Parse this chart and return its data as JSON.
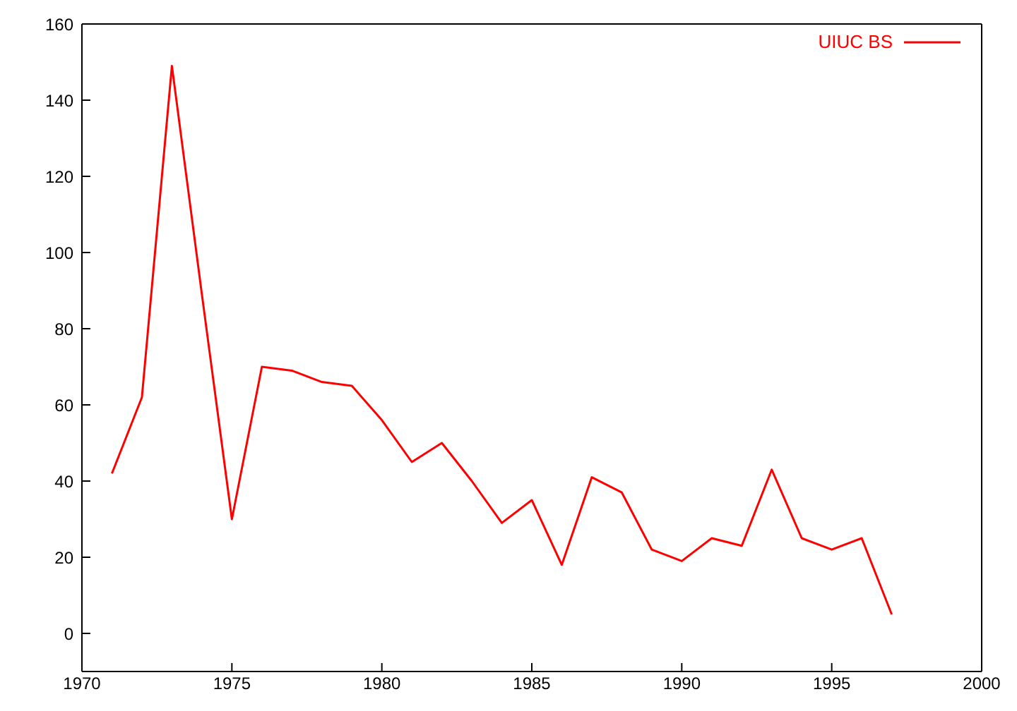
{
  "chart_data": {
    "type": "line",
    "x": [
      1971,
      1972,
      1973,
      1974,
      1975,
      1976,
      1977,
      1978,
      1979,
      1980,
      1981,
      1982,
      1983,
      1984,
      1985,
      1986,
      1987,
      1988,
      1989,
      1990,
      1991,
      1992,
      1993,
      1994,
      1995,
      1996,
      1997
    ],
    "series": [
      {
        "name": "UIUC BS",
        "color": "#ff0000",
        "values": [
          42,
          62,
          149,
          89,
          30,
          70,
          69,
          66,
          65,
          56,
          45,
          50,
          40,
          29,
          35,
          18,
          41,
          37,
          22,
          19,
          25,
          23,
          43,
          25,
          22,
          25,
          5
        ]
      }
    ],
    "xlim": [
      1970,
      2000
    ],
    "xticks": [
      1970,
      1975,
      1980,
      1985,
      1990,
      1995,
      2000
    ],
    "ylim": [
      -10,
      160
    ],
    "yticks": [
      0,
      20,
      40,
      60,
      80,
      100,
      120,
      140,
      160
    ],
    "legend": "top right",
    "marker": "none",
    "line_style": "solid"
  }
}
